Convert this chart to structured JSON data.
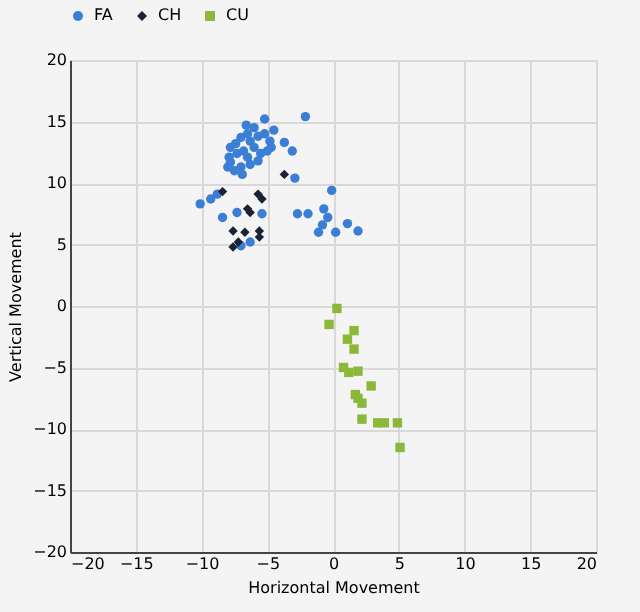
{
  "chart_data": {
    "type": "scatter",
    "xlabel": "Horizontal Movement",
    "ylabel": "Vertical Movement",
    "xlim": [
      -20,
      20
    ],
    "ylim": [
      -20,
      20
    ],
    "xticks": [
      -20,
      -15,
      -10,
      -5,
      0,
      5,
      10,
      15,
      20
    ],
    "yticks": [
      -20,
      -15,
      -10,
      -5,
      0,
      5,
      10,
      15,
      20
    ],
    "grid": true,
    "legend": "top",
    "series": [
      {
        "name": "FA",
        "color": "#3a7fd5",
        "marker": "circle",
        "x": [
          -6.6,
          -5.2,
          -2.1,
          -7.8,
          -7.9,
          -7.4,
          -7.0,
          -6.5,
          -6.3,
          -6.0,
          -5.7,
          -5.2,
          -4.8,
          -4.7,
          -5.0,
          -5.5,
          -5.7,
          -6.3,
          -7.0,
          -7.5,
          -7.8,
          -7.3,
          -6.8,
          -6.5,
          -3.7,
          -3.1,
          -6.9,
          -8.0,
          -4.5,
          -6.0,
          -10.1,
          -9.3,
          -8.8,
          -8.4,
          -7.3,
          -5.4,
          -2.9,
          -2.7,
          -1.9,
          -0.1,
          -0.7,
          -0.4,
          -0.8,
          -1.1,
          0.2,
          1.1,
          1.9,
          -7.0,
          -6.3
        ],
        "values": [
          14.7,
          15.2,
          15.4,
          12.9,
          12.1,
          13.2,
          13.7,
          14.0,
          13.4,
          12.9,
          13.8,
          14.0,
          13.4,
          12.9,
          12.6,
          12.4,
          11.8,
          11.5,
          11.3,
          11.0,
          11.7,
          12.4,
          12.6,
          12.1,
          13.3,
          12.6,
          10.7,
          11.3,
          14.3,
          14.5,
          8.3,
          8.7,
          9.1,
          7.2,
          7.6,
          7.5,
          10.4,
          7.5,
          7.5,
          9.4,
          7.9,
          7.2,
          6.6,
          6.0,
          6.0,
          6.7,
          6.1,
          4.9,
          5.2
        ]
      },
      {
        "name": "CH",
        "color": "#1a2233",
        "marker": "diamond",
        "x": [
          -3.7,
          -8.4,
          -5.7,
          -5.4,
          -6.5,
          -6.3,
          -7.6,
          -6.7,
          -5.6,
          -5.6,
          -7.2,
          -7.6
        ],
        "values": [
          10.7,
          9.3,
          9.1,
          8.7,
          7.9,
          7.6,
          6.1,
          6.0,
          6.1,
          5.6,
          5.2,
          4.8
        ]
      },
      {
        "name": "CU",
        "color": "#8cb83a",
        "marker": "square",
        "x": [
          0.3,
          -0.3,
          1.6,
          1.1,
          1.6,
          0.8,
          1.2,
          1.9,
          2.9,
          1.7,
          1.9,
          2.2,
          2.2,
          3.4,
          3.9,
          4.9,
          5.1
        ],
        "values": [
          -0.2,
          -1.5,
          -2.0,
          -2.7,
          -3.5,
          -5.0,
          -5.4,
          -5.3,
          -6.5,
          -7.2,
          -7.5,
          -7.9,
          -9.2,
          -9.5,
          -9.5,
          -9.5,
          -11.5
        ]
      }
    ]
  }
}
